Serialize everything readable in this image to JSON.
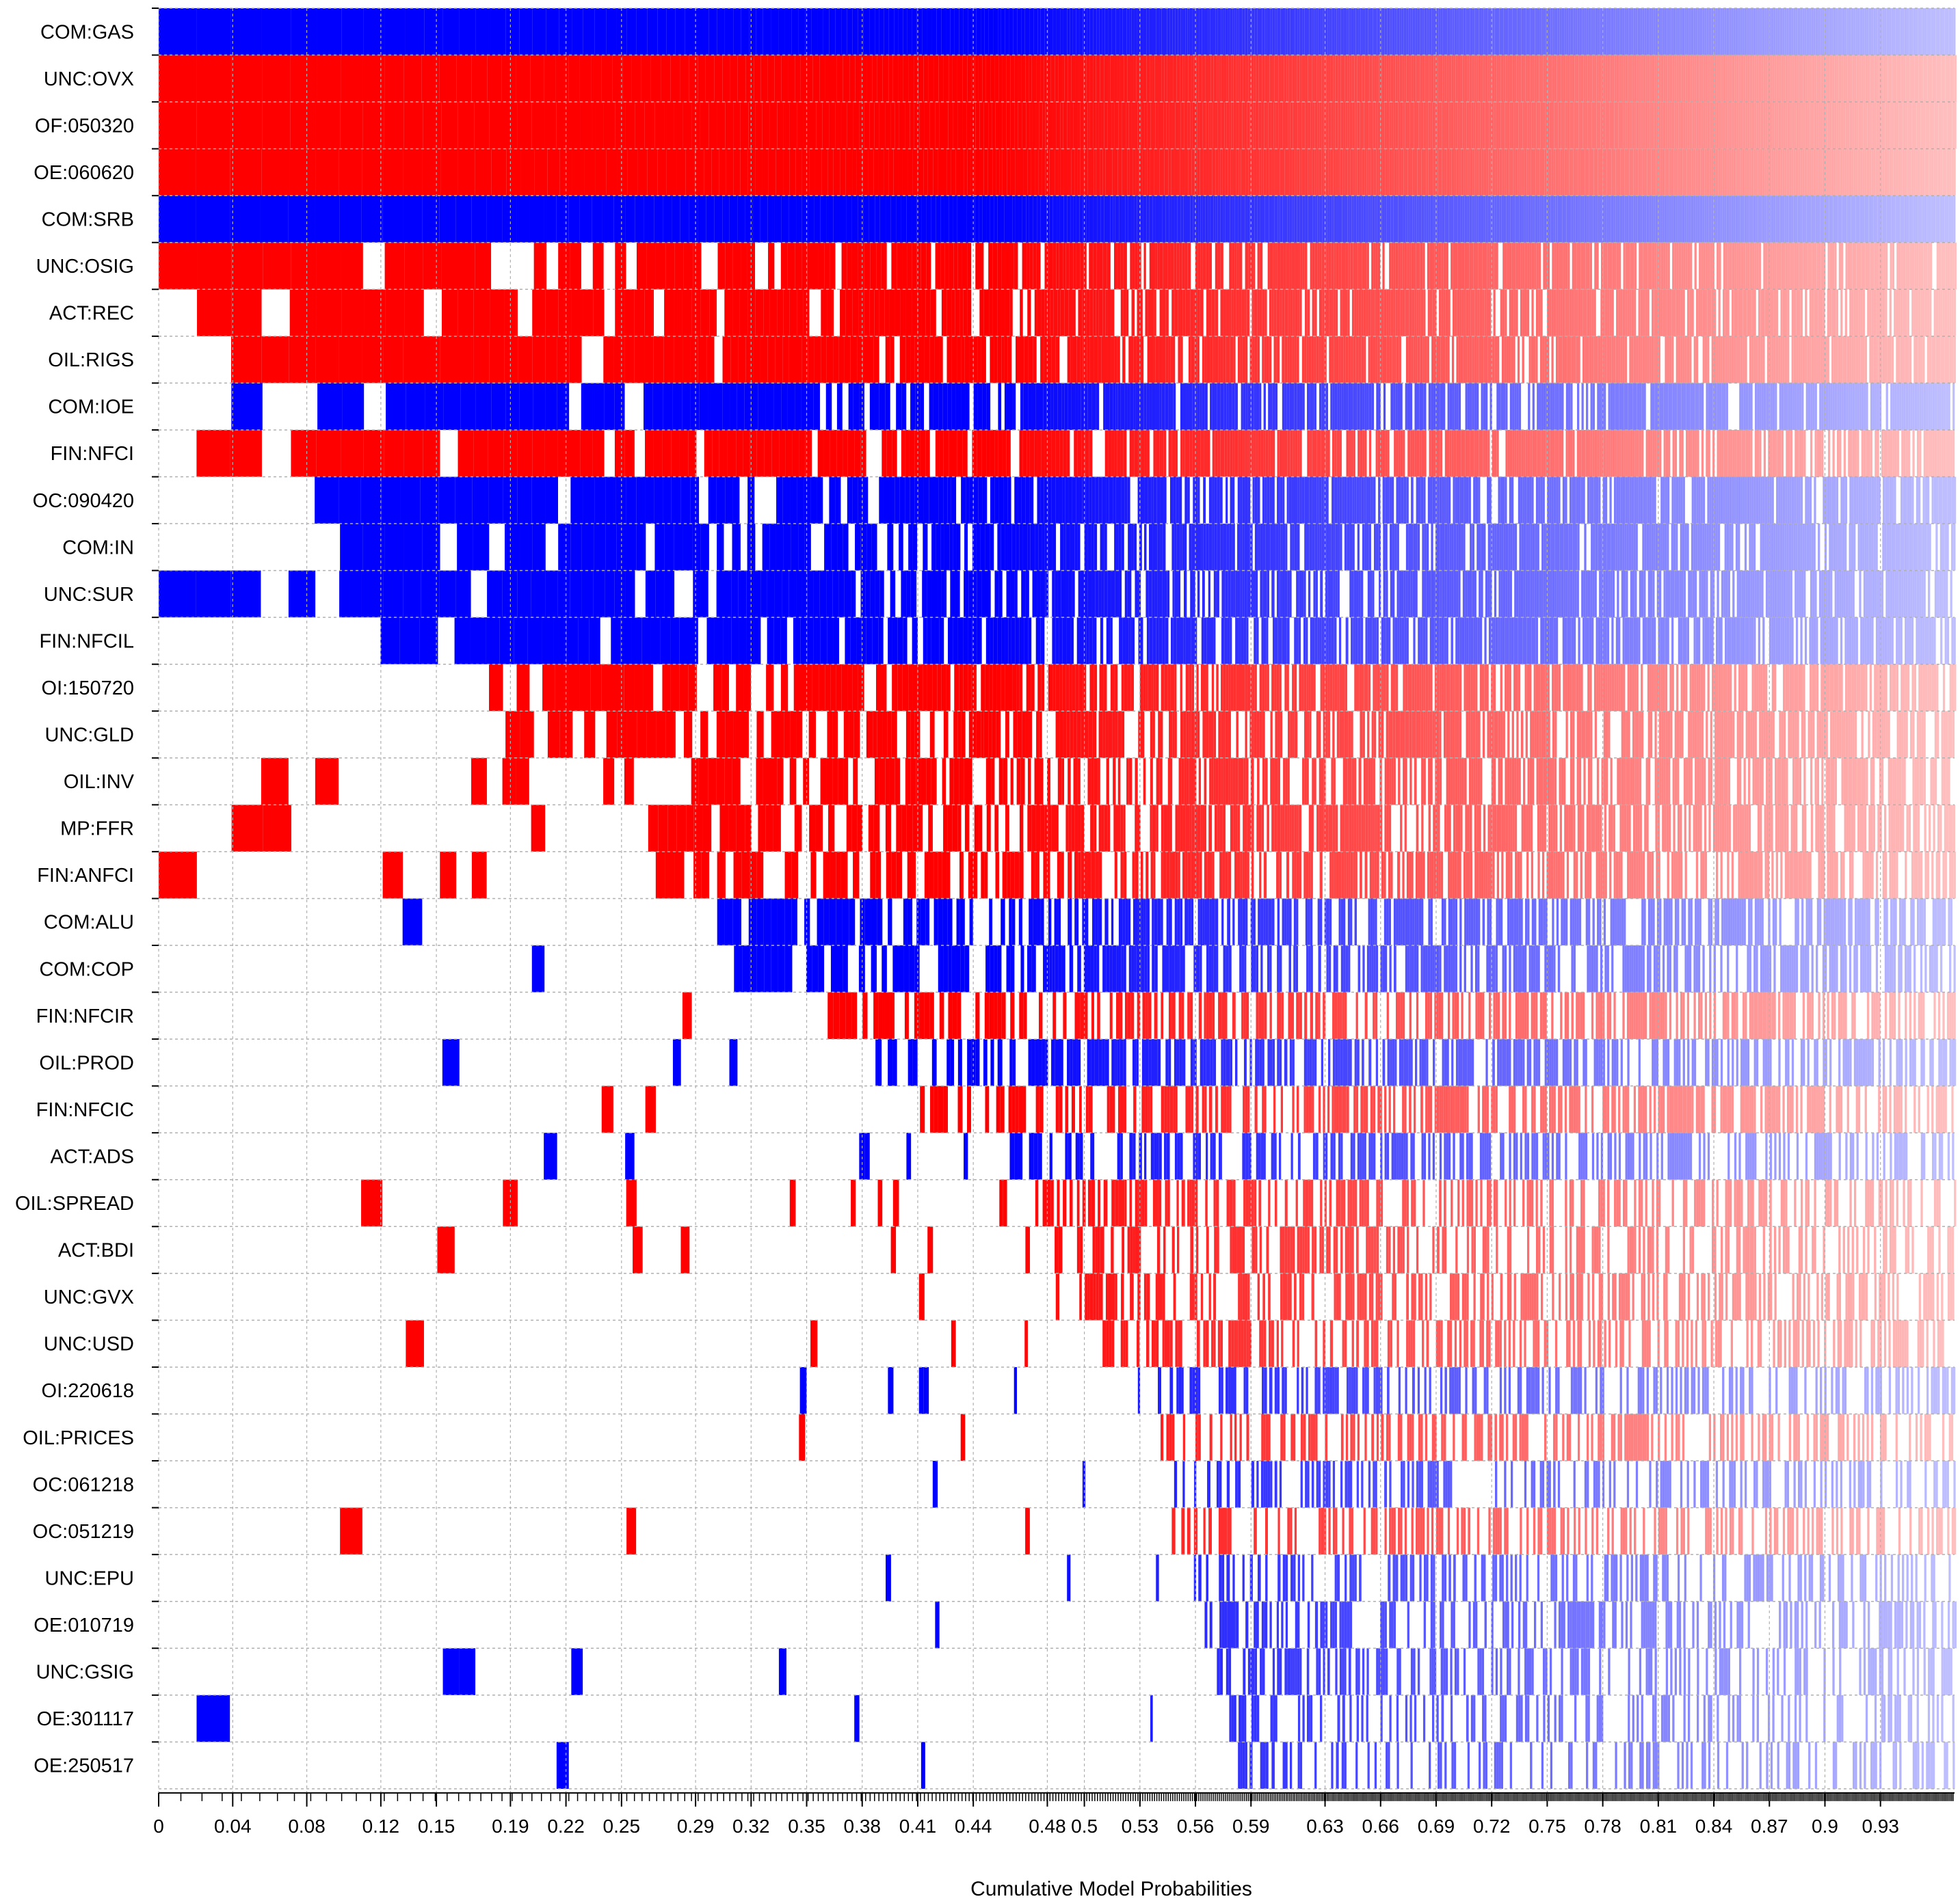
{
  "chart_data": {
    "type": "heatmap",
    "title": "",
    "xlabel": "Cumulative Model Probabilities",
    "ylabel": "",
    "xlim": [
      0,
      0.97
    ],
    "x_ticks": [
      "0",
      "0.04",
      "0.08",
      "0.12",
      "0.15",
      "0.19",
      "0.22",
      "0.25",
      "0.29",
      "0.32",
      "0.35",
      "0.38",
      "0.41",
      "0.44",
      "0.48",
      "0.5",
      "0.53",
      "0.56",
      "0.59",
      "0.63",
      "0.66",
      "0.69",
      "0.72",
      "0.75",
      "0.78",
      "0.81",
      "0.84",
      "0.87",
      "0.9",
      "0.93"
    ],
    "x_tick_values": [
      0,
      0.04,
      0.08,
      0.12,
      0.15,
      0.19,
      0.22,
      0.25,
      0.29,
      0.32,
      0.35,
      0.38,
      0.41,
      0.44,
      0.48,
      0.5,
      0.53,
      0.56,
      0.59,
      0.63,
      0.66,
      0.69,
      0.72,
      0.75,
      0.78,
      0.81,
      0.84,
      0.87,
      0.9,
      0.93
    ],
    "legend": {
      "positive": "red",
      "negative": "blue",
      "excluded": "white"
    },
    "colors": {
      "positive": "#ff0000",
      "negative": "#0000ff",
      "excluded": "#ffffff",
      "grid": "#b0b0b0"
    },
    "variables": [
      {
        "name": "COM:GAS",
        "sign": "negative",
        "inclusion": 1.0
      },
      {
        "name": "UNC:OVX",
        "sign": "positive",
        "inclusion": 1.0
      },
      {
        "name": "OF:050320",
        "sign": "positive",
        "inclusion": 1.0
      },
      {
        "name": "OE:060620",
        "sign": "positive",
        "inclusion": 1.0
      },
      {
        "name": "COM:SRB",
        "sign": "negative",
        "inclusion": 1.0
      },
      {
        "name": "UNC:OSIG",
        "sign": "positive",
        "inclusion": 0.97
      },
      {
        "name": "ACT:REC",
        "sign": "positive",
        "inclusion": 0.95
      },
      {
        "name": "OIL:RIGS",
        "sign": "positive",
        "inclusion": 0.94
      },
      {
        "name": "COM:IOE",
        "sign": "negative",
        "inclusion": 0.93
      },
      {
        "name": "FIN:NFCI",
        "sign": "positive",
        "inclusion": 0.9
      },
      {
        "name": "OC:090420",
        "sign": "negative",
        "inclusion": 0.88
      },
      {
        "name": "COM:IN",
        "sign": "negative",
        "inclusion": 0.86
      },
      {
        "name": "UNC:SUR",
        "sign": "negative",
        "inclusion": 0.85
      },
      {
        "name": "FIN:NFCIL",
        "sign": "negative",
        "inclusion": 0.83
      },
      {
        "name": "OI:150720",
        "sign": "positive",
        "inclusion": 0.72
      },
      {
        "name": "UNC:GLD",
        "sign": "positive",
        "inclusion": 0.7
      },
      {
        "name": "OIL:INV",
        "sign": "positive",
        "inclusion": 0.62
      },
      {
        "name": "MP:FFR",
        "sign": "positive",
        "inclusion": 0.6
      },
      {
        "name": "FIN:ANFCI",
        "sign": "positive",
        "inclusion": 0.58
      },
      {
        "name": "COM:ALU",
        "sign": "negative",
        "inclusion": 0.52
      },
      {
        "name": "COM:COP",
        "sign": "negative",
        "inclusion": 0.5
      },
      {
        "name": "FIN:NFCIR",
        "sign": "positive",
        "inclusion": 0.42
      },
      {
        "name": "OIL:PROD",
        "sign": "negative",
        "inclusion": 0.38
      },
      {
        "name": "FIN:NFCIC",
        "sign": "positive",
        "inclusion": 0.36
      },
      {
        "name": "ACT:ADS",
        "sign": "negative",
        "inclusion": 0.26
      },
      {
        "name": "OIL:SPREAD",
        "sign": "positive",
        "inclusion": 0.24
      },
      {
        "name": "ACT:BDI",
        "sign": "positive",
        "inclusion": 0.22
      },
      {
        "name": "UNC:GVX",
        "sign": "positive",
        "inclusion": 0.2
      },
      {
        "name": "UNC:USD",
        "sign": "positive",
        "inclusion": 0.18
      },
      {
        "name": "OI:220618",
        "sign": "negative",
        "inclusion": 0.15
      },
      {
        "name": "OIL:PRICES",
        "sign": "positive",
        "inclusion": 0.14
      },
      {
        "name": "OC:061218",
        "sign": "negative",
        "inclusion": 0.12
      },
      {
        "name": "OC:051219",
        "sign": "positive",
        "inclusion": 0.11
      },
      {
        "name": "UNC:EPU",
        "sign": "negative",
        "inclusion": 0.1
      },
      {
        "name": "OE:010719",
        "sign": "negative",
        "inclusion": 0.09
      },
      {
        "name": "UNC:GSIG",
        "sign": "negative",
        "inclusion": 0.08
      },
      {
        "name": "OE:301117",
        "sign": "negative",
        "inclusion": 0.07
      },
      {
        "name": "OE:250517",
        "sign": "negative",
        "inclusion": 0.06
      }
    ]
  }
}
